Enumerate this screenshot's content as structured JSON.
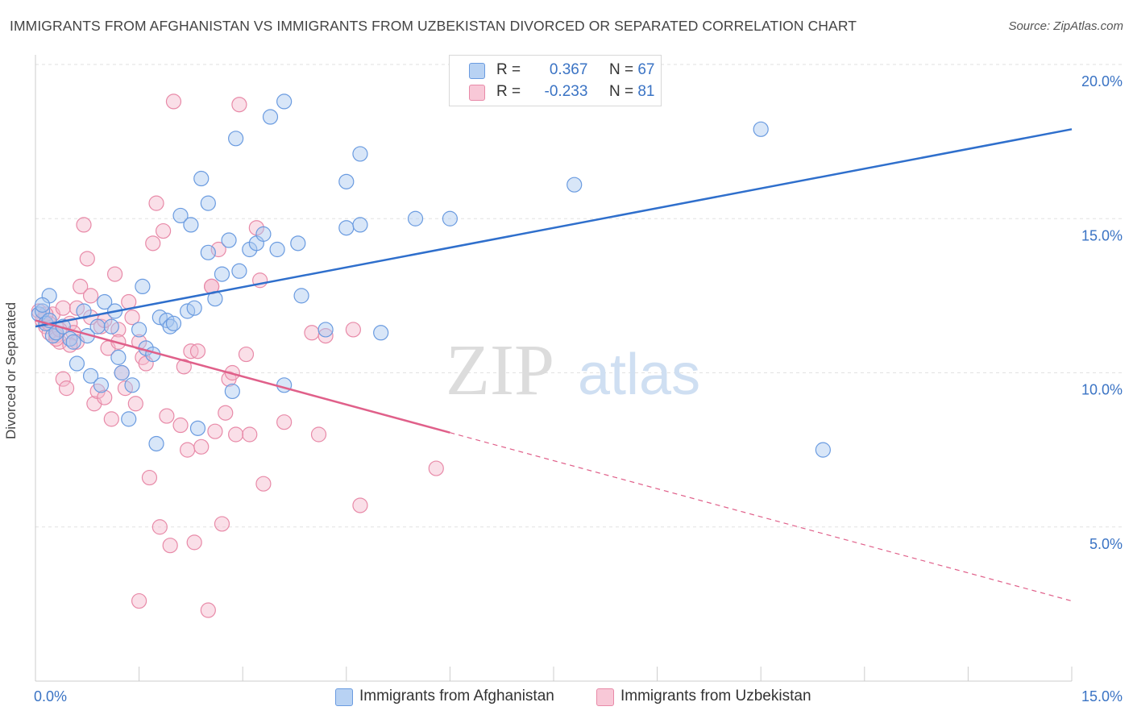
{
  "title": "IMMIGRANTS FROM AFGHANISTAN VS IMMIGRANTS FROM UZBEKISTAN DIVORCED OR SEPARATED CORRELATION CHART",
  "source": "Source: ZipAtlas.com",
  "watermark": {
    "zip": "ZIP",
    "atlas": "atlas"
  },
  "legend": {
    "rows": [
      {
        "r_label": "R =",
        "r_value": "0.367",
        "n_label": "N =",
        "n_value": "67"
      },
      {
        "r_label": "R =",
        "r_value": "-0.233",
        "n_label": "N =",
        "n_value": "81"
      }
    ]
  },
  "colors": {
    "blue_fill": "#a9c8f0",
    "blue_stroke": "#6a9be0",
    "blue_line": "#2f6fcc",
    "pink_fill": "#f5b8cb",
    "pink_stroke": "#e88aa8",
    "pink_line": "#e0608a",
    "grid": "#e2e2e2",
    "tick_label": "#3a73c4"
  },
  "chart_data": {
    "type": "scatter",
    "title": "IMMIGRANTS FROM AFGHANISTAN VS IMMIGRANTS FROM UZBEKISTAN DIVORCED OR SEPARATED CORRELATION CHART",
    "xlabel": "",
    "ylabel": "Divorced or Separated",
    "xlim": [
      0,
      15
    ],
    "ylim": [
      0,
      20
    ],
    "x_tick_labels": [
      "0.0%",
      "15.0%"
    ],
    "y_ticks": [
      5,
      10,
      15,
      20
    ],
    "y_tick_labels": [
      "5.0%",
      "10.0%",
      "15.0%",
      "20.0%"
    ],
    "grid": true,
    "legend_position": "bottom",
    "series": [
      {
        "name": "Immigrants from Afghanistan",
        "color": "#a9c8f0",
        "trend": {
          "x": [
            0,
            15
          ],
          "y": [
            11.5,
            17.9
          ],
          "dashed_from": null
        },
        "points": [
          [
            0.05,
            11.9
          ],
          [
            0.1,
            12.0
          ],
          [
            0.15,
            11.6
          ],
          [
            0.2,
            12.5
          ],
          [
            0.25,
            11.2
          ],
          [
            0.3,
            11.3
          ],
          [
            0.4,
            11.5
          ],
          [
            0.5,
            11.1
          ],
          [
            0.6,
            10.3
          ],
          [
            0.55,
            11.0
          ],
          [
            0.7,
            12.0
          ],
          [
            0.75,
            11.2
          ],
          [
            0.8,
            9.9
          ],
          [
            0.9,
            11.5
          ],
          [
            0.95,
            9.6
          ],
          [
            1.0,
            12.3
          ],
          [
            1.1,
            11.5
          ],
          [
            1.15,
            12.0
          ],
          [
            1.2,
            10.5
          ],
          [
            1.25,
            10.0
          ],
          [
            1.35,
            8.5
          ],
          [
            1.4,
            9.6
          ],
          [
            1.5,
            11.4
          ],
          [
            1.55,
            12.8
          ],
          [
            1.6,
            10.8
          ],
          [
            1.7,
            10.6
          ],
          [
            1.75,
            7.7
          ],
          [
            1.8,
            11.8
          ],
          [
            1.9,
            11.7
          ],
          [
            1.95,
            11.5
          ],
          [
            2.0,
            11.6
          ],
          [
            2.1,
            15.1
          ],
          [
            2.2,
            12.0
          ],
          [
            2.25,
            14.8
          ],
          [
            2.3,
            12.1
          ],
          [
            2.35,
            8.2
          ],
          [
            2.4,
            16.3
          ],
          [
            2.5,
            15.5
          ],
          [
            2.5,
            13.9
          ],
          [
            2.6,
            12.4
          ],
          [
            2.7,
            13.2
          ],
          [
            2.8,
            14.3
          ],
          [
            2.85,
            9.4
          ],
          [
            2.9,
            17.6
          ],
          [
            2.95,
            13.3
          ],
          [
            3.1,
            14.0
          ],
          [
            3.2,
            14.2
          ],
          [
            3.3,
            14.5
          ],
          [
            3.5,
            14.0
          ],
          [
            3.6,
            9.6
          ],
          [
            3.4,
            18.3
          ],
          [
            3.6,
            18.8
          ],
          [
            3.8,
            14.2
          ],
          [
            3.85,
            12.5
          ],
          [
            4.2,
            11.4
          ],
          [
            4.5,
            16.2
          ],
          [
            4.5,
            14.7
          ],
          [
            4.7,
            14.8
          ],
          [
            4.7,
            17.1
          ],
          [
            5.0,
            11.3
          ],
          [
            5.5,
            15.0
          ],
          [
            6.0,
            15.0
          ],
          [
            7.8,
            16.1
          ],
          [
            10.5,
            17.9
          ],
          [
            11.4,
            7.5
          ],
          [
            0.1,
            12.2
          ],
          [
            0.2,
            11.7
          ]
        ]
      },
      {
        "name": "Immigrants from Uzbekistan",
        "color": "#f5b8cb",
        "trend": {
          "x": [
            0,
            15
          ],
          "y": [
            11.7,
            2.6
          ],
          "dashed_from": 6.0
        },
        "points": [
          [
            0.05,
            12.0
          ],
          [
            0.1,
            11.7
          ],
          [
            0.15,
            11.5
          ],
          [
            0.2,
            11.3
          ],
          [
            0.25,
            11.9
          ],
          [
            0.3,
            11.2
          ],
          [
            0.35,
            11.0
          ],
          [
            0.4,
            9.8
          ],
          [
            0.45,
            9.5
          ],
          [
            0.5,
            11.6
          ],
          [
            0.55,
            11.3
          ],
          [
            0.6,
            11.0
          ],
          [
            0.65,
            12.8
          ],
          [
            0.7,
            14.8
          ],
          [
            0.75,
            13.7
          ],
          [
            0.8,
            12.5
          ],
          [
            0.85,
            9.0
          ],
          [
            0.9,
            9.4
          ],
          [
            0.95,
            11.5
          ],
          [
            1.0,
            11.7
          ],
          [
            1.05,
            10.8
          ],
          [
            1.1,
            8.5
          ],
          [
            1.15,
            13.2
          ],
          [
            1.2,
            11.4
          ],
          [
            1.25,
            10.0
          ],
          [
            1.3,
            9.5
          ],
          [
            1.35,
            12.3
          ],
          [
            1.4,
            11.8
          ],
          [
            1.45,
            9.0
          ],
          [
            1.5,
            11.0
          ],
          [
            1.55,
            10.5
          ],
          [
            1.6,
            10.3
          ],
          [
            1.65,
            6.6
          ],
          [
            1.7,
            14.2
          ],
          [
            1.75,
            15.5
          ],
          [
            1.8,
            5.0
          ],
          [
            1.85,
            14.6
          ],
          [
            1.9,
            8.6
          ],
          [
            1.95,
            4.4
          ],
          [
            2.0,
            18.8
          ],
          [
            2.1,
            8.3
          ],
          [
            2.15,
            10.2
          ],
          [
            2.2,
            7.5
          ],
          [
            2.25,
            10.7
          ],
          [
            2.3,
            4.5
          ],
          [
            2.35,
            10.7
          ],
          [
            2.4,
            7.6
          ],
          [
            2.5,
            2.3
          ],
          [
            2.55,
            12.8
          ],
          [
            2.6,
            8.1
          ],
          [
            2.65,
            14.0
          ],
          [
            2.7,
            5.1
          ],
          [
            2.75,
            8.7
          ],
          [
            2.8,
            9.8
          ],
          [
            2.85,
            10.0
          ],
          [
            2.9,
            8.0
          ],
          [
            2.95,
            18.7
          ],
          [
            3.05,
            10.6
          ],
          [
            3.1,
            8.0
          ],
          [
            3.2,
            14.7
          ],
          [
            3.25,
            13.0
          ],
          [
            3.3,
            6.4
          ],
          [
            3.6,
            8.4
          ],
          [
            4.0,
            11.3
          ],
          [
            4.1,
            8.0
          ],
          [
            4.2,
            11.2
          ],
          [
            4.6,
            11.4
          ],
          [
            4.7,
            5.7
          ],
          [
            5.8,
            6.9
          ],
          [
            1.5,
            2.6
          ],
          [
            0.3,
            11.1
          ],
          [
            0.4,
            12.1
          ],
          [
            0.6,
            12.1
          ],
          [
            0.8,
            11.8
          ],
          [
            1.0,
            9.2
          ],
          [
            1.2,
            11.0
          ],
          [
            0.2,
            11.6
          ],
          [
            0.15,
            11.9
          ],
          [
            0.35,
            11.4
          ],
          [
            0.5,
            10.9
          ],
          [
            2.55,
            12.8
          ]
        ]
      }
    ]
  }
}
